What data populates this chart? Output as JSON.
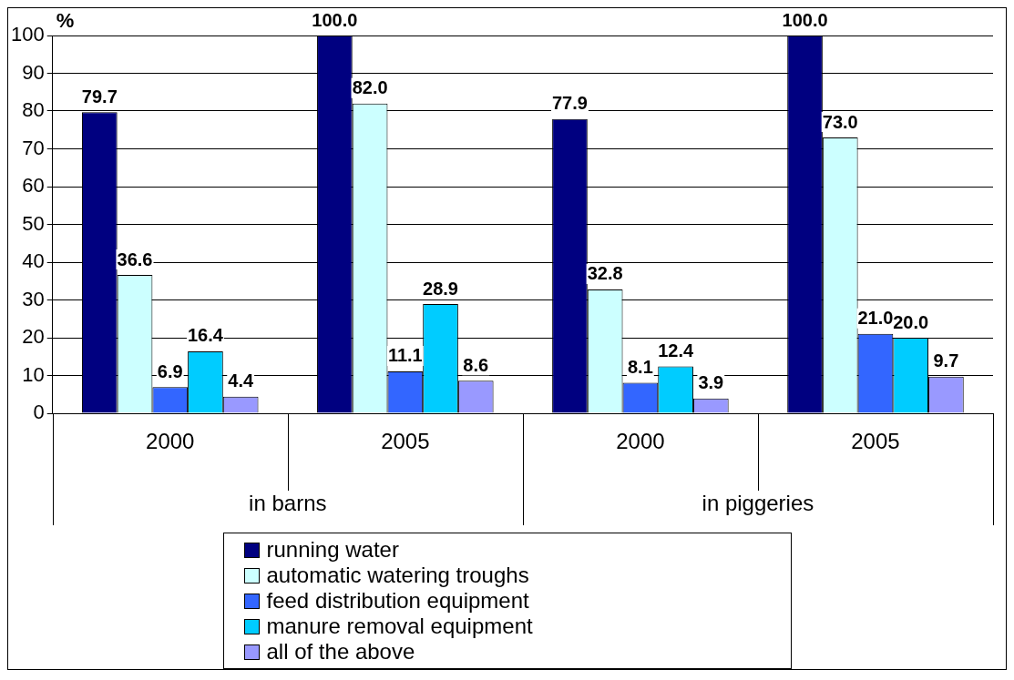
{
  "chart_data": {
    "type": "bar",
    "ylabel": "%",
    "categories": [
      "2000",
      "2005",
      "2000",
      "2005"
    ],
    "annotations": [
      "in barns",
      "in piggeries"
    ],
    "series": [
      {
        "name": "running water",
        "color": "#000080",
        "values": [
          79.7,
          100.0,
          77.9,
          100.0
        ],
        "value_labels": [
          "79.7",
          "100.0",
          "77.9",
          "100.0"
        ]
      },
      {
        "name": "automatic watering troughs",
        "color": "#ccffff",
        "values": [
          36.6,
          82.0,
          32.8,
          73.0
        ],
        "value_labels": [
          "36.6",
          "82.0",
          "32.8",
          "73.0"
        ]
      },
      {
        "name": "feed distribution equipment",
        "color": "#3366ff",
        "values": [
          6.9,
          11.1,
          8.1,
          21.0
        ],
        "value_labels": [
          "6.9",
          "11.1",
          "8.1",
          "21.0"
        ]
      },
      {
        "name": "manure removal equipment",
        "color": "#00ccff",
        "values": [
          16.4,
          28.9,
          12.4,
          20.0
        ],
        "value_labels": [
          "16.4",
          "28.9",
          "12.4",
          "20.0"
        ]
      },
      {
        "name": "all of the above",
        "color": "#9999ff",
        "values": [
          4.4,
          8.6,
          3.9,
          9.7
        ],
        "value_labels": [
          "4.4",
          "8.6",
          "3.9",
          "9.7"
        ]
      }
    ],
    "ylim": [
      0,
      100
    ],
    "yticks": [
      0,
      10,
      20,
      30,
      40,
      50,
      60,
      70,
      80,
      90,
      100
    ],
    "grid": "y",
    "legend": "bottom"
  }
}
